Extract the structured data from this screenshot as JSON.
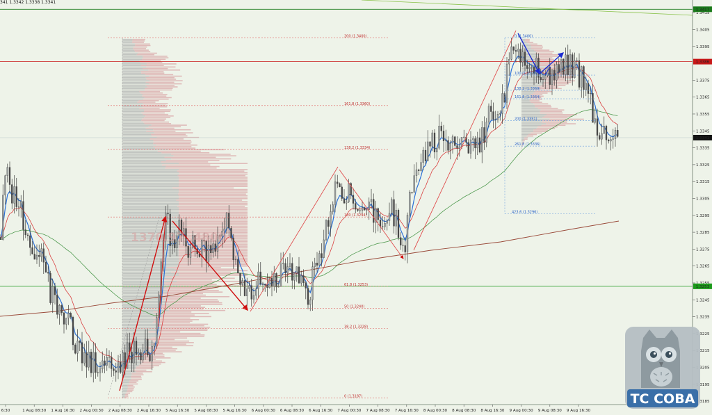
{
  "info_bar": {
    "text": "341 1.3342 1.3338 1.3341"
  },
  "price_axis": {
    "labels": [
      "1.3415",
      "1.3405",
      "1.3395",
      "1.3375",
      "1.3365",
      "1.3355",
      "1.3345",
      "1.3335",
      "1.3325",
      "1.3315",
      "1.3305",
      "1.3295",
      "1.3285",
      "1.3275",
      "1.3265",
      "1.3255",
      "1.3245",
      "1.3235",
      "1.3225",
      "1.3215",
      "1.3205",
      "1.3195",
      "1.3185"
    ],
    "min": 1.3183,
    "max": 1.342,
    "markers": [
      {
        "name": "top-green",
        "label": "1.3417",
        "price": 1.3417,
        "color": "#1a7a1a"
      },
      {
        "name": "resistance",
        "label": "1.3386",
        "price": 1.3386,
        "color": "#c81818"
      },
      {
        "name": "current",
        "label": "1.3341",
        "price": 1.3341,
        "color": "#111111"
      },
      {
        "name": "support",
        "label": "1.3253",
        "price": 1.3253,
        "color": "#1a9a1a"
      }
    ]
  },
  "time_axis": {
    "labels": [
      "6:30",
      "1 Aug 08:30",
      "1 Aug 16:30",
      "2 Aug 00:30",
      "2 Aug 08:30",
      "2 Aug 16:30",
      "5 Aug 16:30",
      "5 Aug 08:30",
      "5 Aug 16:30",
      "6 Aug 00:30",
      "6 Aug 08:30",
      "6 Aug 16:30",
      "7 Aug 00:30",
      "7 Aug 08:30",
      "7 Aug 16:30",
      "8 Aug 00:30",
      "8 Aug 08:30",
      "8 Aug 16:30",
      "9 Aug 00:30",
      "9 Aug 08:30",
      "9 Aug 16:30"
    ]
  },
  "fib_levels_left": [
    {
      "label": "200 (1.3400)",
      "price": 1.34
    },
    {
      "label": "161.8 (1.3360)",
      "price": 1.336
    },
    {
      "label": "138.2 (1.3334)",
      "price": 1.3334
    },
    {
      "label": "100 (1.3294)",
      "price": 1.3294
    },
    {
      "label": "61.8 (1.3253)",
      "price": 1.3253
    },
    {
      "label": "50 (1.3240)",
      "price": 1.324
    },
    {
      "label": "38.2 (1.3228)",
      "price": 1.3228
    },
    {
      "label": "0 (1.3187)",
      "price": 1.3187
    }
  ],
  "fib_levels_right": [
    {
      "label": "0 (1.3400)",
      "price": 1.34
    },
    {
      "label": "100 (1.3378)",
      "price": 1.3378
    },
    {
      "label": "138.2 (1.3369)",
      "price": 1.3369
    },
    {
      "label": "161.8 (1.3364)",
      "price": 1.3364
    },
    {
      "label": "200 (1.3351)",
      "price": 1.3351
    },
    {
      "label": "261.8 (1.3336)",
      "price": 1.3336
    },
    {
      "label": "423.6 (1.3296)",
      "price": 1.3296
    }
  ],
  "watermark": {
    "text": "1370.97..4800"
  },
  "logo": {
    "text": "TC COBA"
  }
}
